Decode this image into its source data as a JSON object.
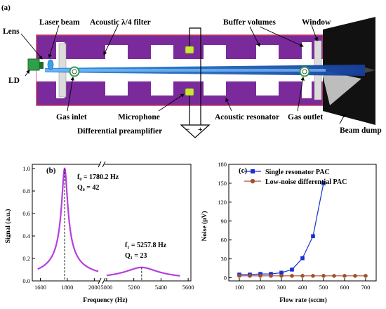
{
  "figure": {
    "panel_a_label": "(a)",
    "labels": {
      "lens": "Lens",
      "laser_beam": "Laser beam",
      "filter": "Acoustic λ/4 filter",
      "buffer": "Buffer volumes",
      "window": "Window",
      "ld": "LD",
      "gas_inlet": "Gas inlet",
      "microphone": "Microphone",
      "resonator": "Acoustic resonator",
      "gas_outlet": "Gas outlet",
      "beam_dump": "Beam dump",
      "preamp": "Differential preamplifier",
      "preamp_minus": "−",
      "preamp_plus": "+"
    },
    "colors": {
      "cell": "#7b2a9b",
      "beam": "#1f5cc4",
      "ld": "#2ea04a",
      "resonance": "#b53fe0",
      "series1": "#1a2fd0",
      "series2": "#a0502d"
    }
  },
  "chart_data": [
    {
      "type": "line",
      "panel": "(b)",
      "xlabel": "Frequency (Hz)",
      "ylabel": "Signal (a.u.)",
      "ylim": [
        0,
        1.0
      ],
      "yticks": [
        0.0,
        0.2,
        0.4,
        0.6,
        0.8,
        1.0
      ],
      "broken_x_axis": true,
      "xticks_left": [
        1600,
        1800,
        2000
      ],
      "xticks_right": [
        5000,
        5200,
        5400,
        5600
      ],
      "annotations": [
        {
          "line1": "f₀ = 1780.2 Hz",
          "line2": "Q₀ = 42"
        },
        {
          "line1": "f₁ = 5257.8 Hz",
          "line2": "Q₁ = 23"
        }
      ],
      "peaks": [
        {
          "f": 1780.2,
          "amplitude": 1.0,
          "Q": 42
        },
        {
          "f": 5257.8,
          "amplitude": 0.12,
          "Q": 23
        }
      ]
    },
    {
      "type": "line",
      "panel": "(c)",
      "xlabel": "Flow rate (sccm)",
      "ylabel": "Noise (μV)",
      "xlim": [
        50,
        750
      ],
      "ylim": [
        -5,
        180
      ],
      "xticks": [
        100,
        200,
        300,
        400,
        500,
        600,
        700
      ],
      "yticks": [
        0,
        30,
        60,
        90,
        120,
        150,
        180
      ],
      "legend": "top-left",
      "series": [
        {
          "name": "Single resonator PAC",
          "marker": "square",
          "x": [
            100,
            150,
            200,
            250,
            300,
            350,
            400,
            450,
            500
          ],
          "y": [
            5,
            5,
            6,
            6,
            8,
            13,
            31,
            66,
            150
          ]
        },
        {
          "name": "Low-noise differential PAC",
          "marker": "circle",
          "x": [
            100,
            150,
            200,
            250,
            300,
            350,
            400,
            450,
            500,
            550,
            600,
            650,
            700
          ],
          "y": [
            3,
            3,
            3,
            3,
            3,
            3,
            3,
            3,
            3,
            3,
            3,
            3,
            3
          ]
        }
      ]
    }
  ]
}
